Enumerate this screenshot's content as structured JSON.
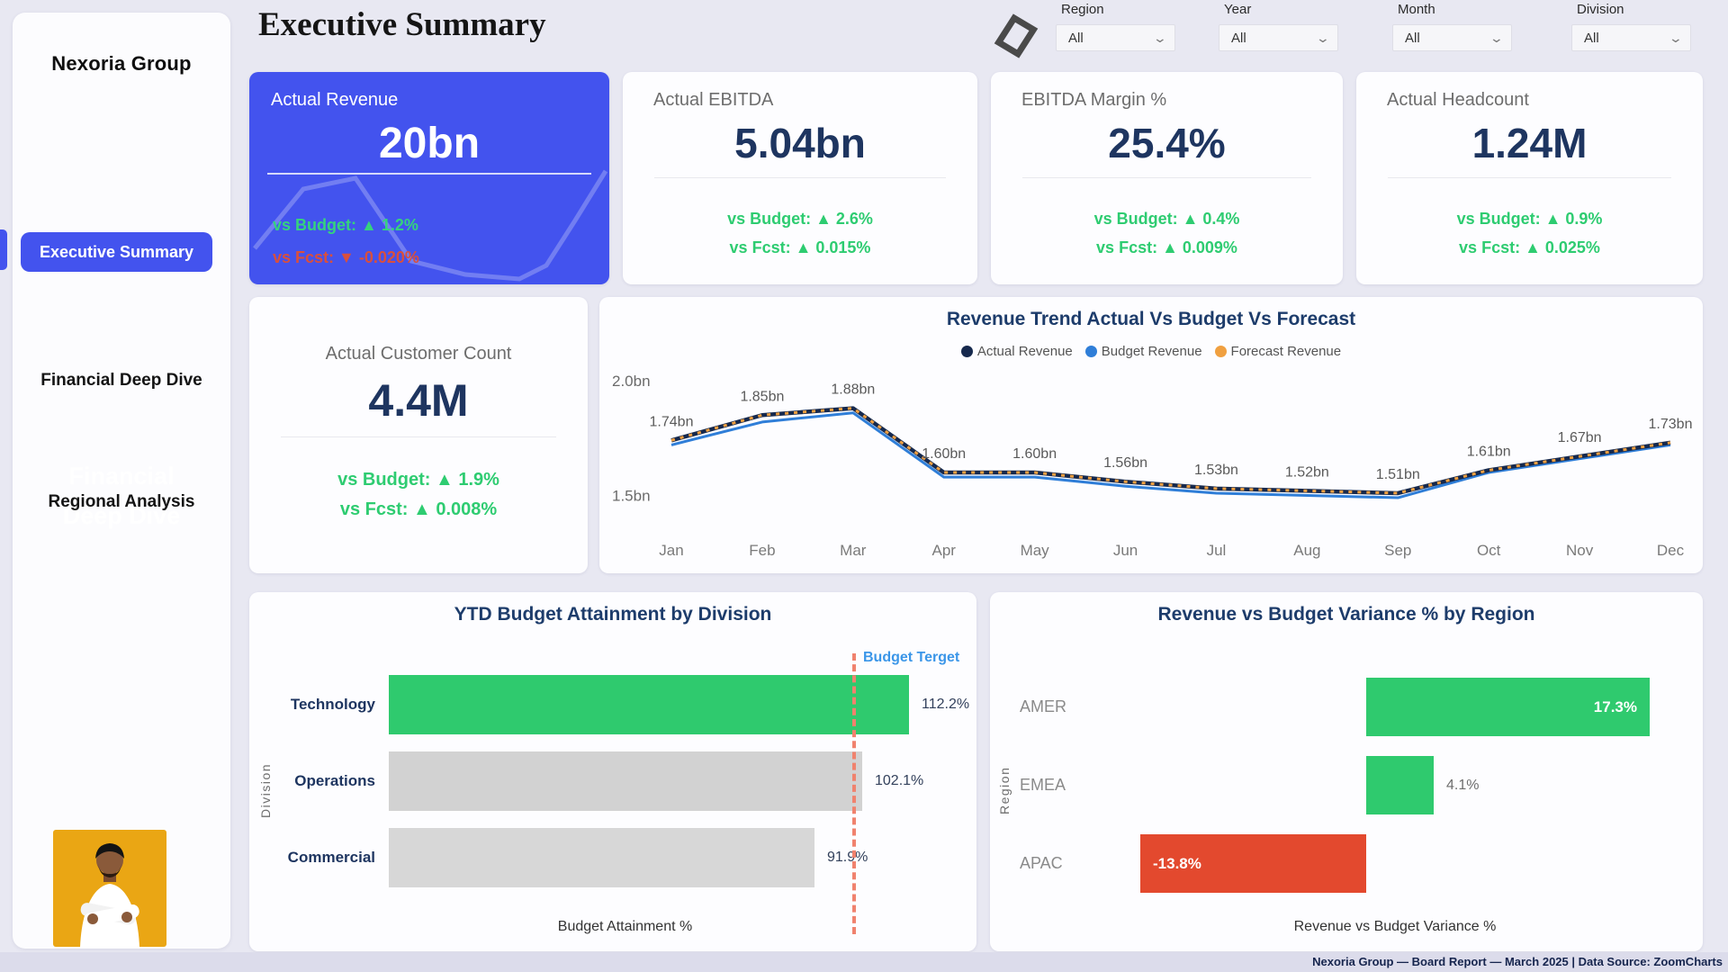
{
  "page": {
    "title": "Executive Summary"
  },
  "sidebar": {
    "brand": "Nexoria Group",
    "nav": [
      {
        "label": "Executive Summary",
        "active": true
      },
      {
        "label": "Financial Deep Dive",
        "active": false
      },
      {
        "label": "Regional Analysis",
        "active": false
      }
    ],
    "ghost_line1": "Financial",
    "ghost_line2": "Deep Dive"
  },
  "filters": [
    {
      "label": "Region",
      "value": "All"
    },
    {
      "label": "Year",
      "value": "All"
    },
    {
      "label": "Month",
      "value": "All"
    },
    {
      "label": "Division",
      "value": "All"
    }
  ],
  "kpis": [
    {
      "title": "Actual Revenue",
      "value": "20bn",
      "vs_budget": "vs Budget: ▲ 1.2%",
      "vs_fcst": "vs Fcst: ▼ -0.020%",
      "vs_budget_color": "#35d27e",
      "vs_fcst_color": "#d94f3d"
    },
    {
      "title": "Actual EBITDA",
      "value": "5.04bn",
      "vs_budget": "vs Budget: ▲ 2.6%",
      "vs_fcst": "vs Fcst: ▲ 0.015%",
      "vs_budget_color": "#2ecc71",
      "vs_fcst_color": "#2ecc71"
    },
    {
      "title": "EBITDA Margin %",
      "value": "25.4%",
      "vs_budget": "vs Budget: ▲ 0.4%",
      "vs_fcst": "vs Fcst: ▲ 0.009%",
      "vs_budget_color": "#2ecc71",
      "vs_fcst_color": "#2ecc71"
    },
    {
      "title": "Actual Headcount",
      "value": "1.24M",
      "vs_budget": "vs Budget: ▲ 0.9%",
      "vs_fcst": "vs Fcst: ▲ 0.025%",
      "vs_budget_color": "#2ecc71",
      "vs_fcst_color": "#2ecc71"
    },
    {
      "title": "Actual Customer Count",
      "value": "4.4M",
      "vs_budget": "vs Budget: ▲ 1.9%",
      "vs_fcst": "vs Fcst: ▲ 0.008%",
      "vs_budget_color": "#2ecc71",
      "vs_fcst_color": "#2ecc71"
    }
  ],
  "chart_data": [
    {
      "type": "line",
      "title": "Revenue Trend Actual Vs Budget Vs Forecast",
      "x": [
        "Jan",
        "Feb",
        "Mar",
        "Apr",
        "May",
        "Jun",
        "Jul",
        "Aug",
        "Sep",
        "Oct",
        "Nov",
        "Dec"
      ],
      "series": [
        {
          "name": "Actual Revenue",
          "color": "#16294d",
          "values": [
            1.74,
            1.85,
            1.88,
            1.6,
            1.6,
            1.56,
            1.53,
            1.52,
            1.51,
            1.61,
            1.67,
            1.73
          ]
        },
        {
          "name": "Budget Revenue",
          "color": "#2f7ed8",
          "values": [
            1.72,
            1.82,
            1.86,
            1.58,
            1.58,
            1.54,
            1.51,
            1.5,
            1.49,
            1.6,
            1.66,
            1.72
          ]
        },
        {
          "name": "Forecast Revenue",
          "color": "#f0a040",
          "dashed": true,
          "values": [
            1.74,
            1.85,
            1.88,
            1.6,
            1.6,
            1.56,
            1.53,
            1.52,
            1.51,
            1.61,
            1.67,
            1.73
          ]
        }
      ],
      "point_labels": [
        "1.74bn",
        "1.85bn",
        "1.88bn",
        "1.60bn",
        "1.60bn",
        "1.56bn",
        "1.53bn",
        "1.52bn",
        "1.51bn",
        "1.61bn",
        "1.67bn",
        "1.73bn"
      ],
      "yticks": [
        {
          "label": "2.0bn",
          "value": 2.0
        },
        {
          "label": "1.5bn",
          "value": 1.5
        }
      ],
      "unit": "bn",
      "legend_position": "top",
      "grid": false
    },
    {
      "type": "bar",
      "orientation": "horizontal",
      "title": "YTD Budget Attainment by Division",
      "categories": [
        "Technology",
        "Operations",
        "Commercial"
      ],
      "values": [
        112.2,
        102.1,
        91.9
      ],
      "value_labels": [
        "112.2%",
        "102.1%",
        "91.9%"
      ],
      "bar_colors": [
        "#2fca6e",
        "#d2d2d2",
        "#d7d7d7"
      ],
      "target": {
        "value": 100,
        "label": "Budget Terget",
        "line_color": "#f0826e",
        "label_color": "#3b96e8"
      },
      "xlabel": "Budget Attainment %",
      "ylabel": "Division",
      "xmax": 123
    },
    {
      "type": "bar",
      "orientation": "horizontal",
      "diverging": true,
      "title": "Revenue vs Budget Variance % by Region",
      "categories": [
        "AMER",
        "EMEA",
        "APAC"
      ],
      "values": [
        17.3,
        4.1,
        -13.8
      ],
      "value_labels": [
        "17.3%",
        "4.1%",
        "-13.8%"
      ],
      "bar_colors": [
        "#2fca6e",
        "#2fca6e",
        "#e3492e"
      ],
      "xlabel": "Revenue vs Budget Variance %",
      "ylabel": "Region"
    }
  ],
  "footer": {
    "text": "Nexoria Group — Board Report — March 2025 | Data Source: ZoomCharts"
  },
  "colors": {
    "accent_blue": "#4353ee",
    "navy_title": "#1d3c6b",
    "value_navy": "#1e3560",
    "green": "#2ecc71",
    "red": "#e3492e",
    "orange": "#f0a040",
    "budget_blue": "#2f7ed8",
    "target_line": "#f0826e",
    "photo_bg": "#eaa614"
  }
}
